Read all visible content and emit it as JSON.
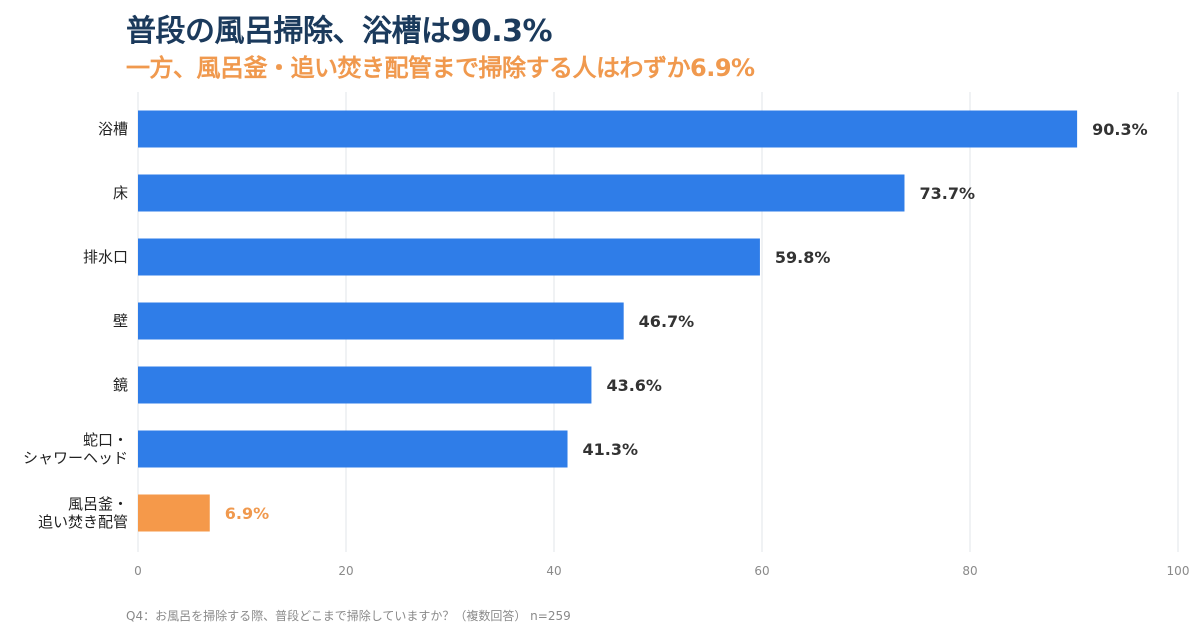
{
  "header": {
    "title": "普段の風呂掃除、浴槽は90.3%",
    "subtitle": "一方、風呂釜・追い焚き配管まで掃除する人はわずか6.9%"
  },
  "footnote": "Q4：お風呂を掃除する際、普段どこまで掃除していますか？（複数回答） n=259",
  "colors": {
    "bar": "#2f7de8",
    "highlight": "#f5994a",
    "highlight_text": "#f0994e",
    "label_text": "#333333",
    "grid": "#e1e4ea",
    "tick_text": "#8a8a8a"
  },
  "chart_data": {
    "type": "bar",
    "orientation": "horizontal",
    "categories": [
      [
        "浴槽"
      ],
      [
        "床"
      ],
      [
        "排水口"
      ],
      [
        "壁"
      ],
      [
        "鏡"
      ],
      [
        "蛇口・",
        "シャワーヘッド"
      ],
      [
        "風呂釜・",
        "追い焚き配管"
      ]
    ],
    "values": [
      90.3,
      73.7,
      59.8,
      46.7,
      43.6,
      41.3,
      6.9
    ],
    "value_labels": [
      "90.3%",
      "73.7%",
      "59.8%",
      "46.7%",
      "43.6%",
      "41.3%",
      "6.9%"
    ],
    "highlight_index": 6,
    "xlim": [
      0,
      100
    ],
    "xticks": [
      0,
      20,
      40,
      60,
      80,
      100
    ],
    "grid": true
  }
}
